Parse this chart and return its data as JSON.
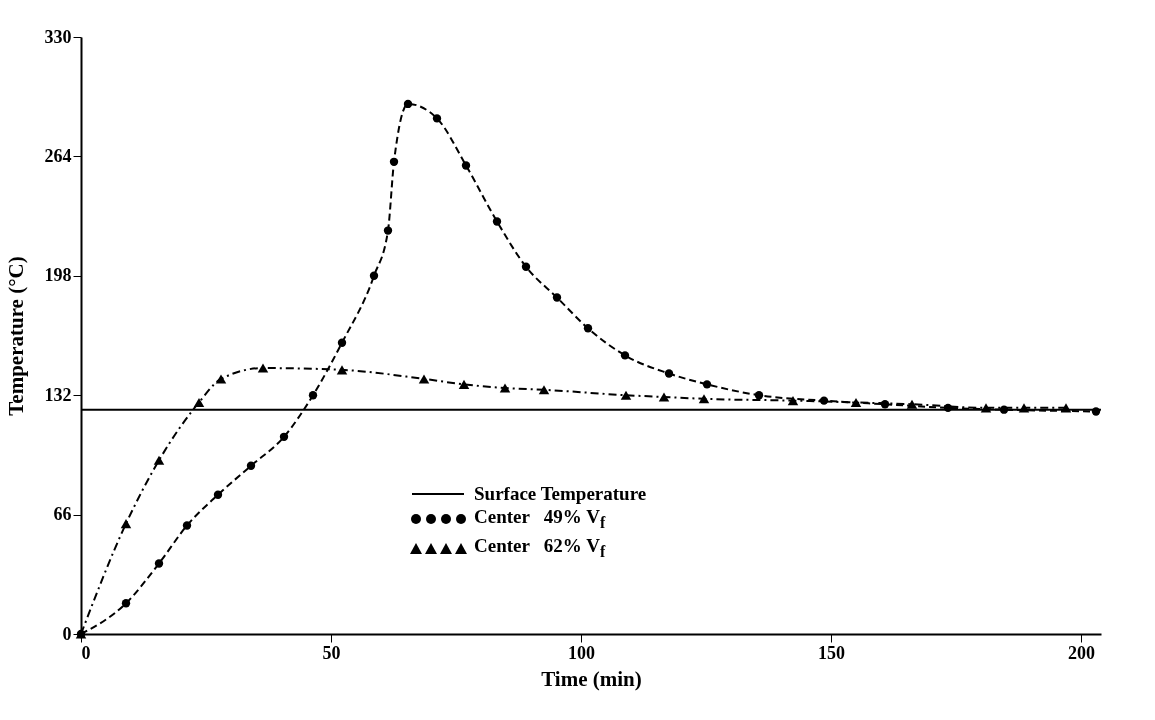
{
  "chart_data": {
    "type": "line",
    "xlabel": "Time (min)",
    "ylabel": "Temperature (°C)",
    "xlim": [
      0,
      204
    ],
    "ylim": [
      0,
      330
    ],
    "xticks": [
      0,
      50,
      100,
      150,
      200
    ],
    "yticks": [
      0,
      66,
      132,
      198,
      264,
      330
    ],
    "grid": false,
    "legend": "bottom",
    "series": [
      {
        "name": "Surface Temperature",
        "color": "#000000",
        "marker": "none",
        "line_style": "solid",
        "x": [
          0,
          204
        ],
        "values": [
          124,
          124
        ]
      },
      {
        "name": "Center   49% V$_{f}$",
        "color": "#000000",
        "marker": "circle",
        "line_style": "dashed",
        "x": [
          0,
          9,
          15.6,
          21.2,
          27.4,
          34,
          40.6,
          46.4,
          52.2,
          58.6,
          61.4,
          62.6,
          65.4,
          71.2,
          77,
          83.2,
          89,
          95.2,
          101.4,
          108.8,
          117.6,
          125.2,
          135.6,
          148.6,
          160.8,
          173.4,
          184.6,
          203
        ],
        "values": [
          0,
          17,
          39,
          60,
          77,
          93,
          109,
          132,
          161,
          198,
          223,
          261,
          293,
          285,
          259,
          228,
          203,
          186,
          169,
          154,
          144,
          138,
          132,
          129,
          127,
          125,
          124,
          123
        ]
      },
      {
        "name": "Center   62% V$_{f}$",
        "color": "#000000",
        "marker": "triangle",
        "line_style": "dashdot",
        "x": [
          0,
          9,
          15.6,
          23.6,
          28,
          36.4,
          52.2,
          68.6,
          76.6,
          84.8,
          92.6,
          109,
          116.6,
          124.6,
          142.4,
          155,
          166.2,
          181,
          188.6,
          197
        ],
        "values": [
          0,
          61,
          96,
          128,
          141,
          147,
          146,
          141,
          138,
          136,
          135,
          132,
          131,
          130,
          129,
          128,
          127,
          125,
          125,
          125
        ]
      }
    ]
  }
}
